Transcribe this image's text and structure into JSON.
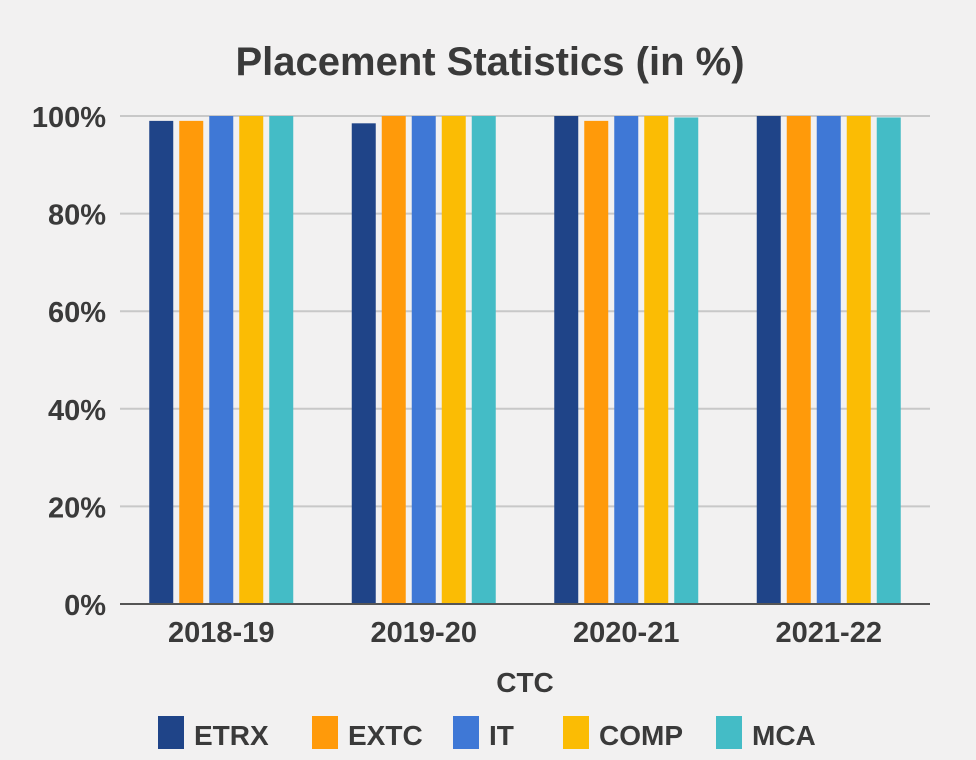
{
  "chart_data": {
    "type": "bar",
    "title": "Placement Statistics (in %)",
    "xlabel": "CTC",
    "ylabel": "",
    "categories": [
      "2018-19",
      "2019-20",
      "2020-21",
      "2021-22"
    ],
    "ylim": [
      0,
      100
    ],
    "yticks": [
      0,
      20,
      40,
      60,
      80,
      100
    ],
    "ytick_labels": [
      "0%",
      "20%",
      "40%",
      "60%",
      "80%",
      "100%"
    ],
    "grid": true,
    "legend_position": "bottom",
    "series": [
      {
        "name": "ETRX",
        "color": "#1f4488",
        "values": [
          99,
          98.5,
          100,
          100
        ]
      },
      {
        "name": "EXTC",
        "color": "#ff9a0a",
        "values": [
          99,
          100,
          99,
          100
        ]
      },
      {
        "name": "IT",
        "color": "#3f78d6",
        "values": [
          100,
          100,
          100,
          100
        ]
      },
      {
        "name": "COMP",
        "color": "#fbbc04",
        "values": [
          100,
          100,
          100,
          100
        ]
      },
      {
        "name": "MCA",
        "color": "#44bcc6",
        "values": [
          100,
          100,
          99.7,
          99.7
        ]
      }
    ]
  }
}
